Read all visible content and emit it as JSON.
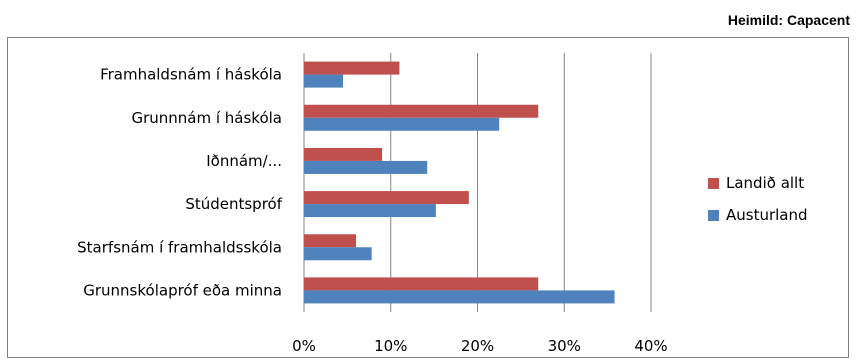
{
  "source_note": "Heimild: Capacent",
  "colors": {
    "series_1": "#C0504D",
    "series_2": "#4F81BD",
    "grid": "#868686"
  },
  "chart_data": {
    "type": "bar",
    "orientation": "horizontal",
    "categories": [
      "Framhaldsnám í háskóla",
      "Grunnnám í háskóla",
      "Iðnnám/...",
      "Stúdentspróf",
      "Starfsnám í framhaldsskóla",
      "Grunnskólapróf eða minna"
    ],
    "series": [
      {
        "name": "Landið allt",
        "values": [
          11,
          27,
          9,
          19,
          6,
          27
        ]
      },
      {
        "name": "Austurland",
        "values": [
          4.5,
          22.5,
          14.2,
          15.2,
          7.8,
          35.8
        ]
      }
    ],
    "xlim": [
      0,
      40
    ],
    "xticks": [
      "0%",
      "10%",
      "20%",
      "30%",
      "40%"
    ],
    "grid": "vertical",
    "legend_position": "right"
  }
}
